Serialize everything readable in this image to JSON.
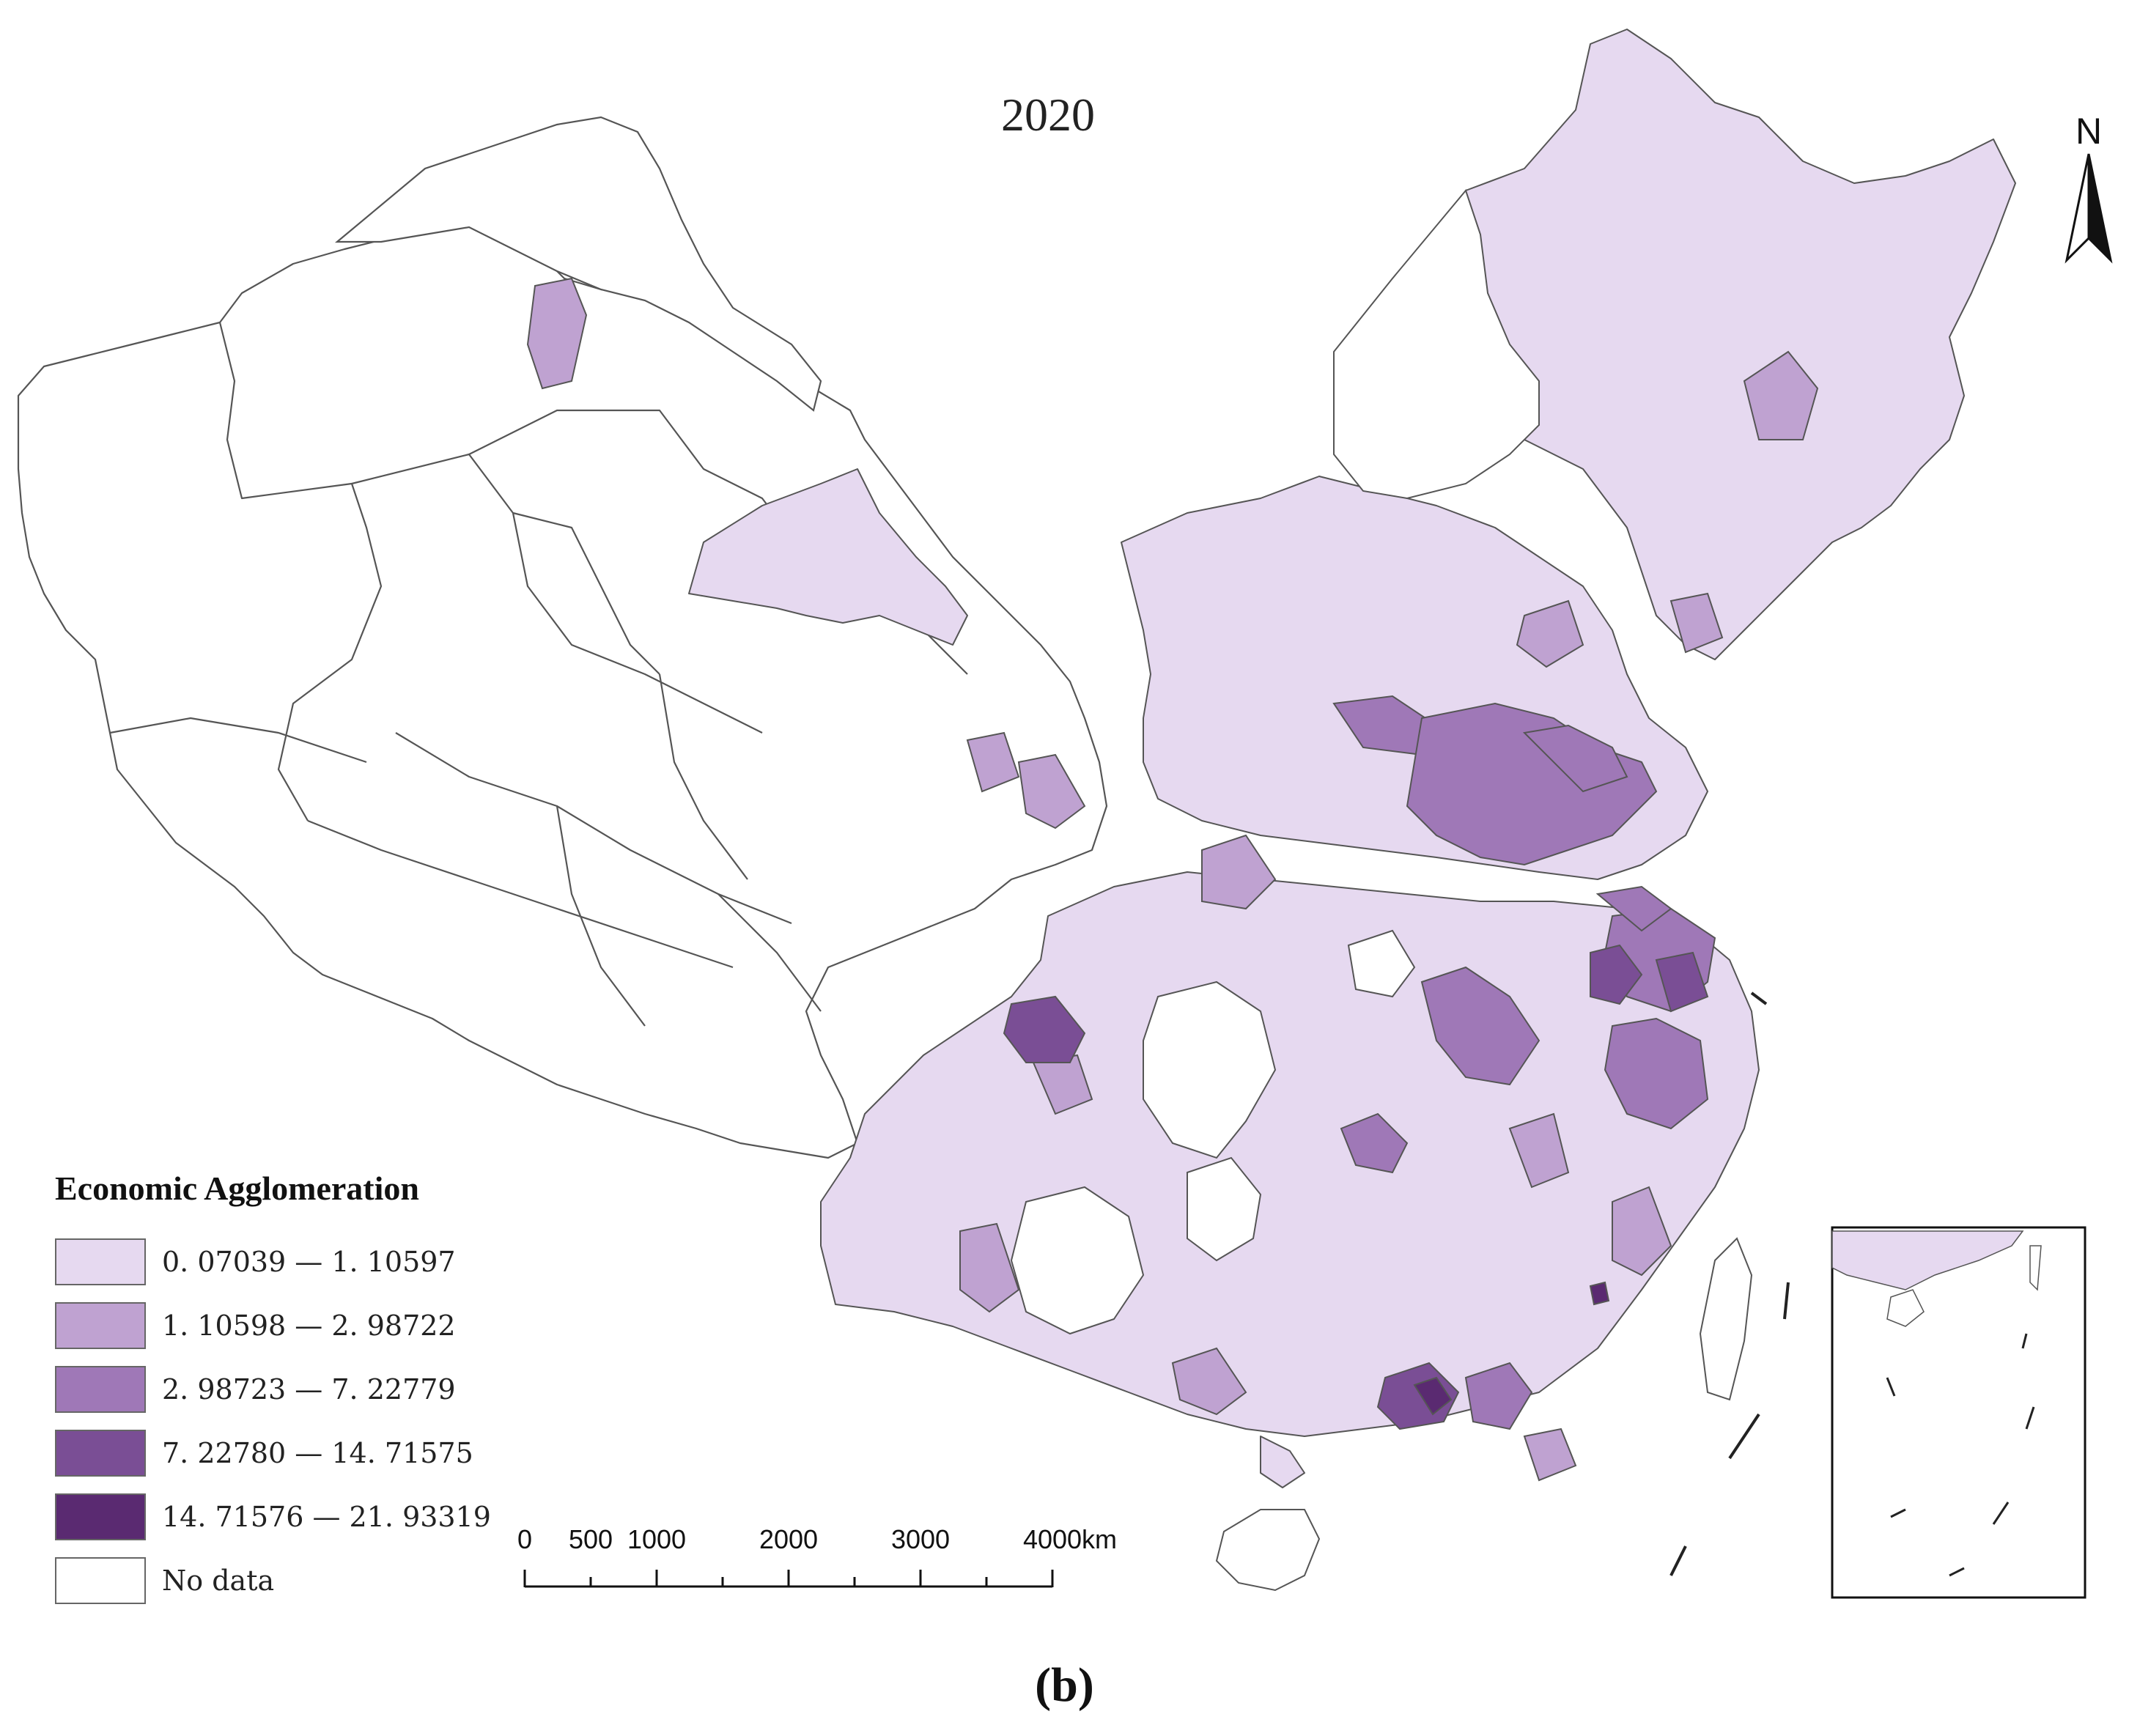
{
  "title": "2020",
  "north_label": "N",
  "caption": "(b)",
  "legend": {
    "title": "Economic Agglomeration",
    "items": [
      {
        "label": "0. 07039 — 1. 10597",
        "color": "#e6d9f0"
      },
      {
        "label": "1. 10598 — 2. 98722",
        "color": "#bfa2d1"
      },
      {
        "label": "2. 98723 — 7. 22779",
        "color": "#9f78b7"
      },
      {
        "label": "7. 22780 — 14. 71575",
        "color": "#7a4e95"
      },
      {
        "label": "14. 71576 — 21. 93319",
        "color": "#5a2a71"
      },
      {
        "label": "No data",
        "color": "#ffffff"
      }
    ]
  },
  "scale_bar": {
    "ticks": [
      "0",
      "500",
      "1000",
      "2000",
      "3000",
      "4000"
    ],
    "unit": "km"
  },
  "colors": {
    "outline": "#555555",
    "no_data": "#ffffff",
    "class1": "#e6d9f0",
    "class2": "#bfa2d1",
    "class3": "#9f78b7",
    "class4": "#7a4e95",
    "class5": "#5a2a71"
  }
}
